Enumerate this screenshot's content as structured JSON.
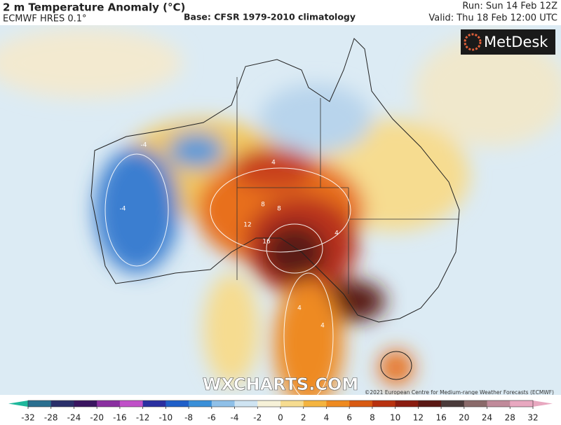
{
  "header": {
    "title": "2 m Temperature Anomaly (°C)",
    "model": "ECMWF HRES 0.1°",
    "base": "Base: CFSR 1979-2010 climatology",
    "run": "Run: Sun 14 Feb 12Z",
    "valid": "Valid: Thu 18 Feb 12:00 UTC"
  },
  "logo": "MetDesk",
  "watermark": "WXCHARTS.COM",
  "copyright": "©2021 European Centre for Medium-range Weather Forecasts (ECMWF)",
  "contour_labels": [
    "-4",
    "-4",
    "4",
    "4",
    "8",
    "8",
    "12",
    "16",
    "4",
    "4"
  ],
  "colorbar": {
    "ticks": [
      -32,
      -28,
      -24,
      -20,
      -16,
      -12,
      -10,
      -8,
      -6,
      -4,
      -2,
      0,
      2,
      4,
      6,
      8,
      10,
      12,
      16,
      20,
      24,
      28,
      32
    ],
    "colors": [
      "#1fb89c",
      "#2a6f8f",
      "#2a2f6a",
      "#3a1560",
      "#8a2fa0",
      "#c050c8",
      "#2a2fa0",
      "#1f5fc8",
      "#3a8fd8",
      "#8fc0e8",
      "#cfe4f2",
      "#f6f1d8",
      "#f6dc90",
      "#f4b440",
      "#ee8a20",
      "#d85a12",
      "#b83210",
      "#8a1c10",
      "#5a1814",
      "#4a3a3a",
      "#8a6a6a",
      "#c08a9a",
      "#e8a8c0"
    ]
  }
}
